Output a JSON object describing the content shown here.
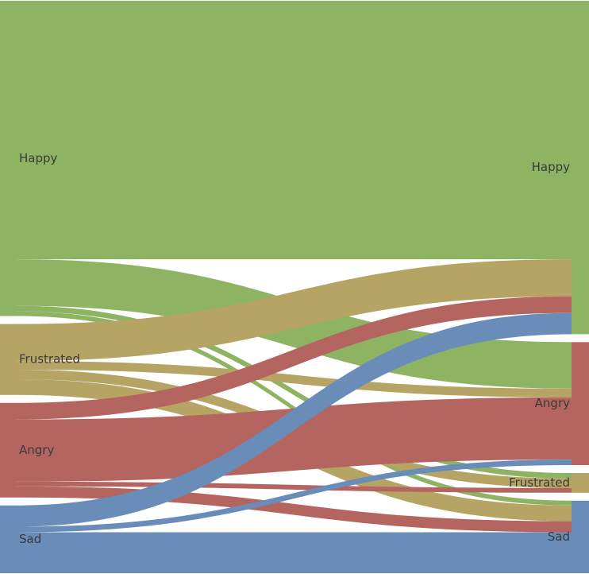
{
  "chart_data": {
    "type": "sankey",
    "title": "",
    "colors": {
      "Happy": "#8db363",
      "Angry": "#b4655f",
      "Frustrated": "#b5a464",
      "Sad": "#6a8cb8"
    },
    "nodes_left": [
      {
        "id": "Happy",
        "label": "Happy"
      },
      {
        "id": "Frustrated",
        "label": "Frustrated"
      },
      {
        "id": "Angry",
        "label": "Angry"
      },
      {
        "id": "Sad",
        "label": "Sad"
      }
    ],
    "nodes_right": [
      {
        "id": "Happy",
        "label": "Happy"
      },
      {
        "id": "Angry",
        "label": "Angry"
      },
      {
        "id": "Frustrated",
        "label": "Frustrated"
      },
      {
        "id": "Sad",
        "label": "Sad"
      }
    ],
    "links": [
      {
        "source": "Happy",
        "target": "Happy",
        "value": 328
      },
      {
        "source": "Happy",
        "target": "Angry",
        "value": 59
      },
      {
        "source": "Happy",
        "target": "Frustrated",
        "value": 7
      },
      {
        "source": "Happy",
        "target": "Sad",
        "value": 6
      },
      {
        "source": "Frustrated",
        "target": "Happy",
        "value": 47
      },
      {
        "source": "Frustrated",
        "target": "Angry",
        "value": 11
      },
      {
        "source": "Frustrated",
        "target": "Frustrated",
        "value": 12
      },
      {
        "source": "Frustrated",
        "target": "Sad",
        "value": 20
      },
      {
        "source": "Angry",
        "target": "Happy",
        "value": 21
      },
      {
        "source": "Angry",
        "target": "Angry",
        "value": 79
      },
      {
        "source": "Angry",
        "target": "Frustrated",
        "value": 6
      },
      {
        "source": "Angry",
        "target": "Sad",
        "value": 14
      },
      {
        "source": "Sad",
        "target": "Happy",
        "value": 27
      },
      {
        "source": "Sad",
        "target": "Angry",
        "value": 7
      },
      {
        "source": "Sad",
        "target": "Sad",
        "value": 52
      }
    ]
  }
}
